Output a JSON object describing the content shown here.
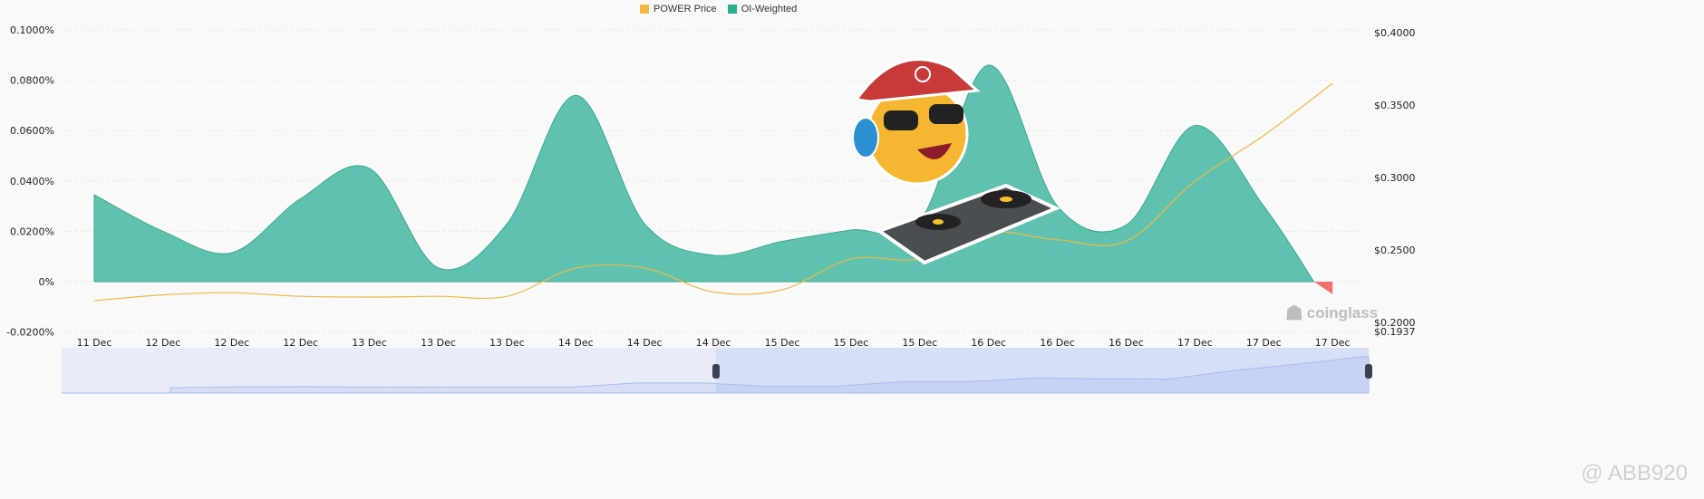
{
  "legend": [
    {
      "label": "POWER Price",
      "color": "#f0b840"
    },
    {
      "label": "OI-Weighted",
      "color": "#26b08f"
    }
  ],
  "watermark": "coinglass",
  "credit": "@ ABB920",
  "chart_data": {
    "type": "area",
    "x": [
      "11 Dec",
      "12 Dec",
      "12 Dec",
      "12 Dec",
      "13 Dec",
      "13 Dec",
      "13 Dec",
      "14 Dec",
      "14 Dec",
      "14 Dec",
      "15 Dec",
      "15 Dec",
      "15 Dec",
      "16 Dec",
      "16 Dec",
      "16 Dec",
      "17 Dec",
      "17 Dec",
      "17 Dec"
    ],
    "series": [
      {
        "name": "OI-Weighted",
        "axis": "left",
        "unit": "%",
        "values": [
          0.0345,
          0.02,
          0.0115,
          0.033,
          0.045,
          0.0055,
          0.023,
          0.074,
          0.023,
          0.0105,
          0.016,
          0.0205,
          0.024,
          0.086,
          0.03,
          0.0225,
          0.062,
          0.03,
          -0.005
        ]
      },
      {
        "name": "POWER Price",
        "axis": "right",
        "unit": "$",
        "values": [
          0.215,
          0.219,
          0.2205,
          0.218,
          0.2175,
          0.218,
          0.218,
          0.2375,
          0.2375,
          0.221,
          0.2225,
          0.2438,
          0.2438,
          0.262,
          0.257,
          0.256,
          0.2975,
          0.329,
          0.365
        ]
      }
    ],
    "left_ticks": [
      "0.1000%",
      "0.0800%",
      "0.0600%",
      "0.0400%",
      "0.0200%",
      "0%",
      "-0.0200%"
    ],
    "right_ticks": [
      "$0.4000",
      "$0.3500",
      "$0.3000",
      "$0.2500",
      "$0.2000",
      "$0.1937"
    ],
    "ylim_left": [
      -0.02,
      0.1
    ],
    "ylim_right": [
      0.1937,
      0.4
    ],
    "grid": true,
    "legend_position": "top-center",
    "navigator": {
      "range_start": 0.5,
      "range_end": 1.0
    }
  }
}
